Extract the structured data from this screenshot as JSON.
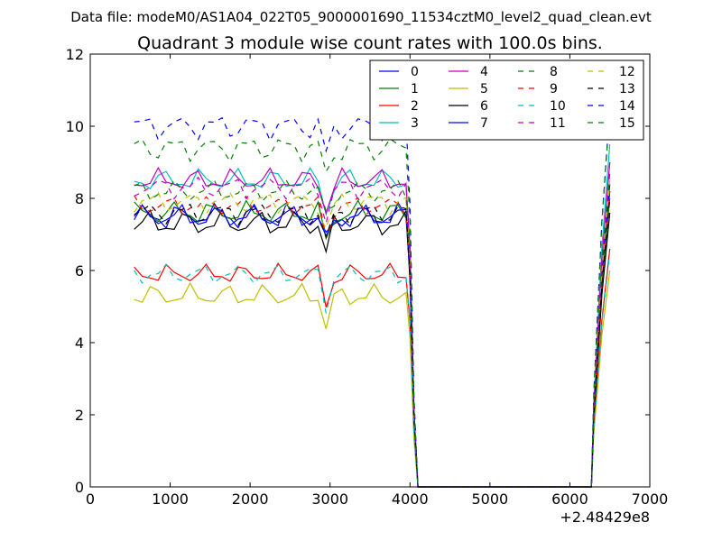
{
  "chart_data": {
    "type": "line",
    "suptitle": "Data file: modeM0/AS1A04_022T05_9000001690_11534cztM0_level2_quad_clean.evt",
    "title": "Quadrant 3 module wise count rates with 100.0s bins.",
    "xlabel": "",
    "ylabel": "",
    "x_offset_label": "+2.48429e8",
    "xlim": [
      0,
      7000
    ],
    "ylim": [
      0,
      12
    ],
    "xticks": [
      0,
      1000,
      2000,
      3000,
      4000,
      5000,
      6000,
      7000
    ],
    "xtick_labels": [
      "0",
      "1000",
      "2000",
      "3000",
      "4000",
      "5000",
      "6000",
      "7000"
    ],
    "yticks": [
      0,
      2,
      4,
      6,
      8,
      10,
      12
    ],
    "ytick_labels": [
      "0",
      "2",
      "4",
      "6",
      "8",
      "10",
      "12"
    ],
    "grid": false,
    "legend_position": "top-right",
    "legend_columns": 4,
    "x_segment1": [
      550,
      650,
      750,
      850,
      950,
      1050,
      1150,
      1250,
      1350,
      1450,
      1550,
      1650,
      1750,
      1850,
      1950,
      2050,
      2150,
      2250,
      2350,
      2450,
      2550,
      2650,
      2750,
      2850,
      2950,
      3050,
      3150,
      3250,
      3350,
      3450,
      3550,
      3650,
      3750,
      3850,
      3950,
      4000,
      4050
    ],
    "x_segment2": [
      6300,
      6400,
      6500
    ],
    "series": [
      {
        "name": "0",
        "color": "#0000ff",
        "dash": "solid",
        "base": 7.5,
        "amp": 0.4,
        "y_end": [
          8.2
        ]
      },
      {
        "name": "1",
        "color": "#008000",
        "dash": "solid",
        "base": 7.6,
        "amp": 0.35,
        "y_end": [
          8.0
        ]
      },
      {
        "name": "2",
        "color": "#ff0000",
        "dash": "solid",
        "base": 5.9,
        "amp": 0.3,
        "y_end": [
          6.6
        ]
      },
      {
        "name": "3",
        "color": "#00bfbf",
        "dash": "solid",
        "base": 8.5,
        "amp": 0.35,
        "y_end": [
          9.5
        ]
      },
      {
        "name": "4",
        "color": "#bf00bf",
        "dash": "solid",
        "base": 8.5,
        "amp": 0.35,
        "y_end": [
          9.0
        ]
      },
      {
        "name": "5",
        "color": "#bfbf00",
        "dash": "solid",
        "base": 5.3,
        "amp": 0.35,
        "y_end": [
          6.0
        ]
      },
      {
        "name": "6",
        "color": "#000000",
        "dash": "solid",
        "base": 7.3,
        "amp": 0.4,
        "y_end": [
          7.6
        ]
      },
      {
        "name": "7",
        "color": "#0000ff",
        "dash": "solid",
        "base": 7.5,
        "amp": 0.35,
        "y_end": [
          8.4
        ]
      },
      {
        "name": "8",
        "color": "#008000",
        "dash": "dashed",
        "base": 8.2,
        "amp": 0.35,
        "y_end": [
          8.7
        ]
      },
      {
        "name": "9",
        "color": "#ff0000",
        "dash": "dashed",
        "base": 7.8,
        "amp": 0.3,
        "y_end": [
          8.2
        ]
      },
      {
        "name": "10",
        "color": "#00bfbf",
        "dash": "dashed",
        "base": 5.9,
        "amp": 0.3,
        "y_end": [
          6.5
        ]
      },
      {
        "name": "11",
        "color": "#bf00bf",
        "dash": "dashed",
        "base": 8.3,
        "amp": 0.35,
        "y_end": [
          9.0
        ]
      },
      {
        "name": "12",
        "color": "#bfbf00",
        "dash": "dashed",
        "base": 7.9,
        "amp": 0.35,
        "y_end": [
          8.5
        ]
      },
      {
        "name": "13",
        "color": "#000000",
        "dash": "dashed",
        "base": 7.6,
        "amp": 0.35,
        "y_end": [
          8.0
        ]
      },
      {
        "name": "14",
        "color": "#0000ff",
        "dash": "dashed",
        "base": 10.0,
        "amp": 0.4,
        "y_end": [
          10.5
        ]
      },
      {
        "name": "15",
        "color": "#008000",
        "dash": "dashed",
        "base": 9.4,
        "amp": 0.4,
        "y_end": [
          10.5
        ]
      }
    ]
  }
}
